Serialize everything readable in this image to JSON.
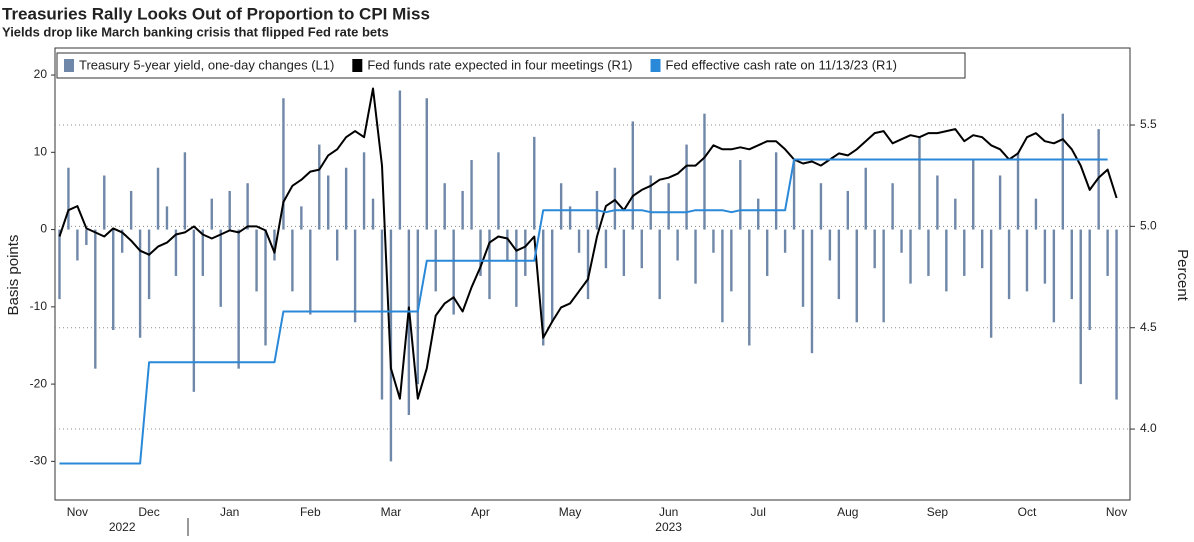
{
  "chart_data": {
    "type": "bar",
    "title": "Treasuries Rally Looks Out of Proportion to CPI Miss",
    "subtitle": "Yields drop like March banking crisis that flipped Fed rate bets",
    "y_label": "Basis points",
    "y2_label": "Percent",
    "years": [
      "2022",
      "2023"
    ],
    "categories": [
      null,
      null,
      "Nov",
      null,
      null,
      null,
      null,
      null,
      null,
      null,
      "Dec",
      null,
      null,
      null,
      null,
      null,
      null,
      null,
      null,
      "Jan",
      null,
      null,
      null,
      null,
      null,
      null,
      null,
      null,
      "Feb",
      null,
      null,
      null,
      null,
      null,
      null,
      null,
      null,
      "Mar",
      null,
      null,
      null,
      null,
      null,
      null,
      null,
      null,
      null,
      "Apr",
      null,
      null,
      null,
      null,
      null,
      null,
      null,
      null,
      null,
      "May",
      null,
      null,
      null,
      null,
      null,
      null,
      null,
      null,
      null,
      null,
      "Jun",
      null,
      null,
      null,
      null,
      null,
      null,
      null,
      null,
      null,
      "Jul",
      null,
      null,
      null,
      null,
      null,
      null,
      null,
      null,
      null,
      "Aug",
      null,
      null,
      null,
      null,
      null,
      null,
      null,
      null,
      null,
      "Sep",
      null,
      null,
      null,
      null,
      null,
      null,
      null,
      null,
      null,
      "Oct",
      null,
      null,
      null,
      null,
      null,
      null,
      null,
      null,
      null,
      "Nov",
      null
    ],
    "ylim": [
      -35,
      23.5
    ],
    "yticks": [
      -30,
      -20,
      -10,
      0,
      10,
      20
    ],
    "y2lim": [
      3.65,
      5.88
    ],
    "y2ticks": [
      {
        "value": 4,
        "label": "4.0"
      },
      4.5,
      {
        "value": 5,
        "label": "5.0"
      },
      5.5
    ],
    "grid": true,
    "legend": "top",
    "series": [
      {
        "name": "Treasury 5-year yield, one-day changes (L1)",
        "type": "bar",
        "color": "#6f87a8",
        "values": [
          -9,
          8,
          -4,
          -2,
          -18,
          7,
          -13,
          -3,
          5,
          -14,
          -9,
          8,
          3,
          -6,
          10,
          -21,
          -6,
          4,
          -10,
          5,
          -18,
          6,
          -8,
          -15,
          -4,
          17,
          -8,
          3,
          -11,
          11,
          7,
          -4,
          8,
          -12,
          10,
          4,
          -22,
          -30,
          18,
          -24,
          -20,
          17,
          -8,
          6,
          -11,
          5,
          9,
          -6,
          -9,
          10,
          -4,
          -10,
          -6,
          12,
          -15,
          -12,
          6,
          3,
          -3,
          -9,
          5,
          -5,
          8,
          -6,
          14,
          -5,
          7,
          -9,
          6,
          -4,
          11,
          -7,
          15,
          -3,
          -12,
          -8,
          9,
          -15,
          4,
          -6,
          10,
          -3,
          9,
          -10,
          -16,
          6,
          -4,
          -9,
          5,
          -12,
          8,
          -5,
          -12,
          6,
          -3,
          -7,
          12,
          -6,
          7,
          -8,
          4,
          -6,
          9,
          -5,
          -14,
          7,
          -9,
          10,
          -8,
          4,
          -7,
          -12,
          15,
          -9,
          -20,
          -13,
          13,
          -6,
          -22,
          null
        ]
      },
      {
        "name": "Fed funds rate expected in four meetings (R1)",
        "type": "line",
        "axis": "y2",
        "color": "#000000",
        "values": [
          4.95,
          5.08,
          5.1,
          4.99,
          4.97,
          4.95,
          4.99,
          4.97,
          4.93,
          4.88,
          4.86,
          4.9,
          4.92,
          4.96,
          4.97,
          5.0,
          4.96,
          4.94,
          4.96,
          4.98,
          4.97,
          5.0,
          5.0,
          4.98,
          4.87,
          5.12,
          5.2,
          5.23,
          5.27,
          5.28,
          5.35,
          5.38,
          5.44,
          5.47,
          5.44,
          5.68,
          5.3,
          4.3,
          4.15,
          4.6,
          4.15,
          4.3,
          4.56,
          4.62,
          4.65,
          4.58,
          4.7,
          4.8,
          4.92,
          4.95,
          4.94,
          4.88,
          4.9,
          4.95,
          4.45,
          4.53,
          4.6,
          4.62,
          4.68,
          4.74,
          4.95,
          5.1,
          5.13,
          5.08,
          5.15,
          5.18,
          5.2,
          5.23,
          5.24,
          5.26,
          5.3,
          5.3,
          5.34,
          5.4,
          5.38,
          5.38,
          5.39,
          5.38,
          5.4,
          5.42,
          5.42,
          5.38,
          5.33,
          5.31,
          5.32,
          5.3,
          5.33,
          5.36,
          5.35,
          5.38,
          5.42,
          5.46,
          5.47,
          5.41,
          5.43,
          5.45,
          5.44,
          5.46,
          5.46,
          5.47,
          5.48,
          5.42,
          5.45,
          5.44,
          5.4,
          5.38,
          5.33,
          5.36,
          5.44,
          5.46,
          5.42,
          5.41,
          5.43,
          5.38,
          5.3,
          5.18,
          5.24,
          5.28,
          5.14,
          null
        ]
      },
      {
        "name": "Fed effective cash rate on 11/13/23 (R1)",
        "type": "line",
        "axis": "y2",
        "color": "#2a88d8",
        "values": [
          3.83,
          3.83,
          3.83,
          3.83,
          3.83,
          3.83,
          3.83,
          3.83,
          3.83,
          3.83,
          4.33,
          4.33,
          4.33,
          4.33,
          4.33,
          4.33,
          4.33,
          4.33,
          4.33,
          4.33,
          4.33,
          4.33,
          4.33,
          4.33,
          4.33,
          4.58,
          4.58,
          4.58,
          4.58,
          4.58,
          4.58,
          4.58,
          4.58,
          4.58,
          4.58,
          4.58,
          4.58,
          4.58,
          4.58,
          4.58,
          4.58,
          4.83,
          4.83,
          4.83,
          4.83,
          4.83,
          4.83,
          4.83,
          4.83,
          4.83,
          4.83,
          4.83,
          4.83,
          4.83,
          5.08,
          5.08,
          5.08,
          5.08,
          5.08,
          5.08,
          5.08,
          5.07,
          5.08,
          5.08,
          5.08,
          5.08,
          5.07,
          5.07,
          5.07,
          5.07,
          5.07,
          5.08,
          5.08,
          5.08,
          5.08,
          5.07,
          5.08,
          5.08,
          5.08,
          5.08,
          5.08,
          5.08,
          5.33,
          5.33,
          5.33,
          5.33,
          5.33,
          5.33,
          5.33,
          5.33,
          5.33,
          5.33,
          5.33,
          5.33,
          5.33,
          5.33,
          5.33,
          5.33,
          5.33,
          5.33,
          5.33,
          5.33,
          5.33,
          5.33,
          5.33,
          5.33,
          5.33,
          5.33,
          5.33,
          5.33,
          5.33,
          5.33,
          5.33,
          5.33,
          5.33,
          5.33,
          5.33,
          5.33,
          null,
          null
        ]
      }
    ]
  }
}
